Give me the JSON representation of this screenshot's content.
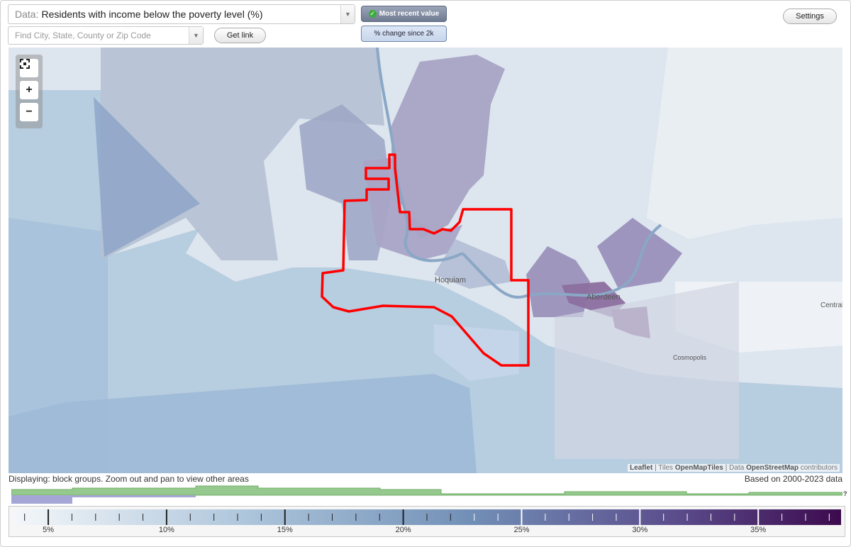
{
  "data_select": {
    "prefix": "Data:",
    "value": "Residents with income below the poverty level (%)"
  },
  "search": {
    "placeholder": "Find City, State, County or Zip Code"
  },
  "buttons": {
    "get_link": "Get link",
    "settings": "Settings"
  },
  "toggles": {
    "most_recent": "Most recent value",
    "pct_change": "% change since 2k"
  },
  "map": {
    "labels": {
      "hoquiam": "Hoquiam",
      "aberdeen": "Aberdeen",
      "central": "Central",
      "cosmopolis": "Cosmopolis"
    },
    "attribution": {
      "leaflet": "Leaflet",
      "tiles_prefix": "Tiles",
      "tiles": "OpenMapTiles",
      "data_prefix": "Data",
      "osm": "OpenStreetMap",
      "contributors": "contributors"
    },
    "colors": {
      "water": "#9fbcd8",
      "land": "#d7e0ea",
      "outline": "#ff0000",
      "low": "#e6eef5",
      "high": "#3c0a4e"
    }
  },
  "status": {
    "displaying": "Displaying: block groups. Zoom out and pan to view other areas",
    "based_on": "Based on 2000-2023 data"
  },
  "histogram": {
    "help": "?"
  },
  "legend": {
    "min": 3.5,
    "max": 38.5,
    "labels": [
      "5%",
      "10%",
      "15%",
      "20%",
      "25%",
      "30%",
      "35%"
    ],
    "label_values": [
      5,
      10,
      15,
      20,
      25,
      30,
      35
    ]
  },
  "icons": {
    "fullscreen": "fullscreen-icon",
    "zoom_in": "plus-icon",
    "zoom_out": "minus-icon",
    "dropdown": "chevron-down-icon",
    "check": "check-icon"
  }
}
